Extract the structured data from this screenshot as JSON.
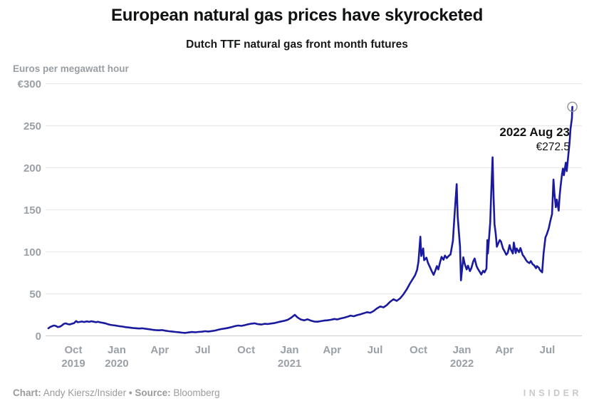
{
  "header": {
    "title": "European natural gas prices have skyrocketed",
    "subtitle": "Dutch TTF natural gas front month futures"
  },
  "annotation": {
    "date": "2022 Aug 23",
    "value": "€272.5"
  },
  "footer": {
    "chart_label": "Chart:",
    "chart_value": "Andy Kiersz/Insider",
    "separator": "•",
    "source_label": "Source:",
    "source_value": "Bloomberg",
    "logo": "INSIDER"
  },
  "colors": {
    "line": "#1A1A9E",
    "grid": "#e9e9e9",
    "grid_zero": "#d2d2d2",
    "axis_text": "#9aa0a5",
    "marker": "#8f9396",
    "title_text": "#111213",
    "footer_text": "#9b9b9b",
    "logo_text": "#c9c9c9"
  },
  "chart_data": {
    "type": "line",
    "title": "European natural gas prices have skyrocketed",
    "subtitle": "Dutch TTF natural gas front month futures",
    "ylabel": "Euros per megawatt hour",
    "xlabel": "",
    "ylim": [
      0,
      300
    ],
    "grid": true,
    "legend_position": "none",
    "series_name": "Dutch TTF natural gas front month futures (EUR/MWh)",
    "y_ticks": [
      {
        "label": "€300",
        "value": 300
      },
      {
        "label": "250",
        "value": 250
      },
      {
        "label": "200",
        "value": 200
      },
      {
        "label": "150",
        "value": 150
      },
      {
        "label": "100",
        "value": 100
      },
      {
        "label": "50",
        "value": 50
      },
      {
        "label": "0",
        "value": 0
      }
    ],
    "x_ticks": [
      {
        "month": "Oct",
        "year": "2019",
        "date": "2019-10-01"
      },
      {
        "month": "Jan",
        "year": "2020",
        "date": "2020-01-01"
      },
      {
        "month": "Apr",
        "date": "2020-04-01"
      },
      {
        "month": "Jul",
        "date": "2020-07-01"
      },
      {
        "month": "Oct",
        "date": "2020-10-01"
      },
      {
        "month": "Jan",
        "year": "2021",
        "date": "2021-01-01"
      },
      {
        "month": "Apr",
        "date": "2021-04-01"
      },
      {
        "month": "Jul",
        "date": "2021-07-01"
      },
      {
        "month": "Oct",
        "date": "2021-10-01"
      },
      {
        "month": "Jan",
        "year": "2022",
        "date": "2022-01-01"
      },
      {
        "month": "Apr",
        "date": "2022-04-01"
      },
      {
        "month": "Jul",
        "date": "2022-07-01"
      }
    ],
    "end_point": {
      "date": "2022-08-23",
      "value": 272.5
    },
    "points": [
      [
        "2019-08-09",
        9.0
      ],
      [
        "2019-08-13",
        10.5
      ],
      [
        "2019-08-17",
        11.5
      ],
      [
        "2019-08-21",
        12.3
      ],
      [
        "2019-08-25",
        11.8
      ],
      [
        "2019-08-29",
        10.4
      ],
      [
        "2019-09-03",
        11.0
      ],
      [
        "2019-09-07",
        12.5
      ],
      [
        "2019-09-11",
        14.3
      ],
      [
        "2019-09-15",
        14.8
      ],
      [
        "2019-09-19",
        14.0
      ],
      [
        "2019-09-23",
        13.6
      ],
      [
        "2019-09-27",
        14.2
      ],
      [
        "2019-10-02",
        15.0
      ],
      [
        "2019-10-07",
        17.6
      ],
      [
        "2019-10-10",
        16.2
      ],
      [
        "2019-10-15",
        16.6
      ],
      [
        "2019-10-19",
        17.0
      ],
      [
        "2019-10-24",
        16.4
      ],
      [
        "2019-10-29",
        17.2
      ],
      [
        "2019-11-04",
        16.6
      ],
      [
        "2019-11-08",
        17.4
      ],
      [
        "2019-11-13",
        16.8
      ],
      [
        "2019-11-18",
        16.2
      ],
      [
        "2019-11-22",
        16.8
      ],
      [
        "2019-11-27",
        16.0
      ],
      [
        "2019-12-03",
        15.4
      ],
      [
        "2019-12-09",
        14.7
      ],
      [
        "2019-12-13",
        13.9
      ],
      [
        "2019-12-18",
        13.1
      ],
      [
        "2019-12-23",
        12.7
      ],
      [
        "2019-12-30",
        12.2
      ],
      [
        "2020-01-06",
        11.5
      ],
      [
        "2020-01-13",
        11.0
      ],
      [
        "2020-01-20",
        10.3
      ],
      [
        "2020-01-27",
        9.9
      ],
      [
        "2020-02-03",
        9.4
      ],
      [
        "2020-02-10",
        9.1
      ],
      [
        "2020-02-17",
        8.7
      ],
      [
        "2020-02-24",
        9.0
      ],
      [
        "2020-03-02",
        8.4
      ],
      [
        "2020-03-09",
        7.9
      ],
      [
        "2020-03-16",
        7.3
      ],
      [
        "2020-03-23",
        6.9
      ],
      [
        "2020-03-30",
        6.6
      ],
      [
        "2020-04-06",
        6.9
      ],
      [
        "2020-04-13",
        6.1
      ],
      [
        "2020-04-20",
        5.5
      ],
      [
        "2020-04-27",
        5.2
      ],
      [
        "2020-05-04",
        4.7
      ],
      [
        "2020-05-11",
        4.3
      ],
      [
        "2020-05-18",
        3.8
      ],
      [
        "2020-05-25",
        3.5
      ],
      [
        "2020-06-01",
        4.1
      ],
      [
        "2020-06-08",
        4.6
      ],
      [
        "2020-06-15",
        4.2
      ],
      [
        "2020-06-22",
        4.7
      ],
      [
        "2020-06-29",
        4.9
      ],
      [
        "2020-07-06",
        5.5
      ],
      [
        "2020-07-13",
        5.2
      ],
      [
        "2020-07-20",
        5.7
      ],
      [
        "2020-07-27",
        6.3
      ],
      [
        "2020-08-03",
        7.3
      ],
      [
        "2020-08-10",
        8.1
      ],
      [
        "2020-08-17",
        8.7
      ],
      [
        "2020-08-24",
        9.5
      ],
      [
        "2020-08-31",
        10.4
      ],
      [
        "2020-09-07",
        11.5
      ],
      [
        "2020-09-14",
        12.3
      ],
      [
        "2020-09-21",
        11.9
      ],
      [
        "2020-09-28",
        12.7
      ],
      [
        "2020-10-05",
        13.7
      ],
      [
        "2020-10-12",
        14.5
      ],
      [
        "2020-10-19",
        14.9
      ],
      [
        "2020-10-26",
        13.9
      ],
      [
        "2020-11-02",
        13.5
      ],
      [
        "2020-11-09",
        14.3
      ],
      [
        "2020-11-16",
        14.1
      ],
      [
        "2020-11-23",
        14.7
      ],
      [
        "2020-11-30",
        15.2
      ],
      [
        "2020-12-07",
        16.2
      ],
      [
        "2020-12-14",
        17.1
      ],
      [
        "2020-12-21",
        17.9
      ],
      [
        "2020-12-28",
        19.1
      ],
      [
        "2021-01-04",
        21.4
      ],
      [
        "2021-01-12",
        25.0
      ],
      [
        "2021-01-18",
        21.8
      ],
      [
        "2021-01-25",
        19.4
      ],
      [
        "2021-02-01",
        18.5
      ],
      [
        "2021-02-08",
        19.7
      ],
      [
        "2021-02-15",
        18.1
      ],
      [
        "2021-02-22",
        17.0
      ],
      [
        "2021-03-01",
        16.8
      ],
      [
        "2021-03-08",
        17.5
      ],
      [
        "2021-03-15",
        18.1
      ],
      [
        "2021-03-22",
        18.5
      ],
      [
        "2021-03-29",
        19.1
      ],
      [
        "2021-04-06",
        20.1
      ],
      [
        "2021-04-12",
        19.5
      ],
      [
        "2021-04-19",
        20.7
      ],
      [
        "2021-04-26",
        21.5
      ],
      [
        "2021-05-03",
        22.6
      ],
      [
        "2021-05-10",
        24.1
      ],
      [
        "2021-05-17",
        23.3
      ],
      [
        "2021-05-24",
        24.7
      ],
      [
        "2021-05-31",
        25.7
      ],
      [
        "2021-06-07",
        26.9
      ],
      [
        "2021-06-14",
        28.1
      ],
      [
        "2021-06-21",
        27.5
      ],
      [
        "2021-06-28",
        29.6
      ],
      [
        "2021-07-05",
        32.6
      ],
      [
        "2021-07-12",
        34.9
      ],
      [
        "2021-07-19",
        33.9
      ],
      [
        "2021-07-26",
        36.6
      ],
      [
        "2021-08-02",
        40.6
      ],
      [
        "2021-08-09",
        43.6
      ],
      [
        "2021-08-16",
        41.6
      ],
      [
        "2021-08-23",
        44.6
      ],
      [
        "2021-08-30",
        49.2
      ],
      [
        "2021-09-06",
        55.2
      ],
      [
        "2021-09-13",
        62.3
      ],
      [
        "2021-09-20",
        68.7
      ],
      [
        "2021-09-24",
        72.3
      ],
      [
        "2021-09-28",
        78.5
      ],
      [
        "2021-10-01",
        88.0
      ],
      [
        "2021-10-05",
        118.0
      ],
      [
        "2021-10-07",
        95.0
      ],
      [
        "2021-10-11",
        104.0
      ],
      [
        "2021-10-13",
        90.0
      ],
      [
        "2021-10-18",
        93.0
      ],
      [
        "2021-10-21",
        87.0
      ],
      [
        "2021-10-26",
        81.0
      ],
      [
        "2021-10-29",
        77.0
      ],
      [
        "2021-11-02",
        72.5
      ],
      [
        "2021-11-05",
        76.5
      ],
      [
        "2021-11-09",
        83.0
      ],
      [
        "2021-11-12",
        79.0
      ],
      [
        "2021-11-16",
        88.0
      ],
      [
        "2021-11-19",
        94.0
      ],
      [
        "2021-11-23",
        90.5
      ],
      [
        "2021-11-26",
        95.5
      ],
      [
        "2021-11-30",
        92.5
      ],
      [
        "2021-12-03",
        94.5
      ],
      [
        "2021-12-08",
        97.0
      ],
      [
        "2021-12-13",
        113.0
      ],
      [
        "2021-12-16",
        140.0
      ],
      [
        "2021-12-21",
        180.5
      ],
      [
        "2021-12-23",
        142.0
      ],
      [
        "2021-12-28",
        106.0
      ],
      [
        "2021-12-30",
        66.0
      ],
      [
        "2022-01-04",
        93.5
      ],
      [
        "2022-01-07",
        85.5
      ],
      [
        "2022-01-11",
        79.0
      ],
      [
        "2022-01-14",
        83.5
      ],
      [
        "2022-01-18",
        77.0
      ],
      [
        "2022-01-21",
        80.5
      ],
      [
        "2022-01-25",
        88.5
      ],
      [
        "2022-01-28",
        92.0
      ],
      [
        "2022-02-01",
        83.0
      ],
      [
        "2022-02-04",
        79.5
      ],
      [
        "2022-02-08",
        76.0
      ],
      [
        "2022-02-11",
        73.0
      ],
      [
        "2022-02-15",
        77.5
      ],
      [
        "2022-02-18",
        75.5
      ],
      [
        "2022-02-22",
        80.0
      ],
      [
        "2022-02-24",
        114.0
      ],
      [
        "2022-02-25",
        98.0
      ],
      [
        "2022-03-02",
        135.0
      ],
      [
        "2022-03-04",
        168.0
      ],
      [
        "2022-03-07",
        212.5
      ],
      [
        "2022-03-09",
        168.0
      ],
      [
        "2022-03-11",
        133.0
      ],
      [
        "2022-03-14",
        120.0
      ],
      [
        "2022-03-16",
        106.0
      ],
      [
        "2022-03-22",
        114.0
      ],
      [
        "2022-03-25",
        112.0
      ],
      [
        "2022-03-29",
        104.0
      ],
      [
        "2022-04-01",
        101.0
      ],
      [
        "2022-04-05",
        96.5
      ],
      [
        "2022-04-08",
        98.5
      ],
      [
        "2022-04-12",
        108.0
      ],
      [
        "2022-04-14",
        103.5
      ],
      [
        "2022-04-19",
        98.0
      ],
      [
        "2022-04-21",
        111.0
      ],
      [
        "2022-04-25",
        98.5
      ],
      [
        "2022-04-27",
        104.0
      ],
      [
        "2022-05-02",
        99.5
      ],
      [
        "2022-05-05",
        104.5
      ],
      [
        "2022-05-10",
        96.0
      ],
      [
        "2022-05-13",
        94.0
      ],
      [
        "2022-05-17",
        90.0
      ],
      [
        "2022-05-20",
        88.0
      ],
      [
        "2022-05-24",
        86.5
      ],
      [
        "2022-05-27",
        89.0
      ],
      [
        "2022-05-31",
        85.0
      ],
      [
        "2022-06-03",
        84.0
      ],
      [
        "2022-06-07",
        80.5
      ],
      [
        "2022-06-09",
        83.0
      ],
      [
        "2022-06-13",
        81.0
      ],
      [
        "2022-06-15",
        78.5
      ],
      [
        "2022-06-20",
        75.5
      ],
      [
        "2022-06-23",
        98.0
      ],
      [
        "2022-06-27",
        117.0
      ],
      [
        "2022-06-30",
        121.0
      ],
      [
        "2022-07-04",
        128.0
      ],
      [
        "2022-07-07",
        136.0
      ],
      [
        "2022-07-11",
        145.0
      ],
      [
        "2022-07-14",
        186.0
      ],
      [
        "2022-07-16",
        170.0
      ],
      [
        "2022-07-19",
        153.0
      ],
      [
        "2022-07-21",
        162.0
      ],
      [
        "2022-07-25",
        149.0
      ],
      [
        "2022-07-27",
        166.0
      ],
      [
        "2022-07-29",
        178.0
      ],
      [
        "2022-08-01",
        192.0
      ],
      [
        "2022-08-03",
        199.0
      ],
      [
        "2022-08-05",
        191.0
      ],
      [
        "2022-08-09",
        206.0
      ],
      [
        "2022-08-11",
        196.0
      ],
      [
        "2022-08-15",
        218.0
      ],
      [
        "2022-08-17",
        230.0
      ],
      [
        "2022-08-19",
        246.0
      ],
      [
        "2022-08-22",
        259.0
      ],
      [
        "2022-08-23",
        272.5
      ]
    ]
  }
}
